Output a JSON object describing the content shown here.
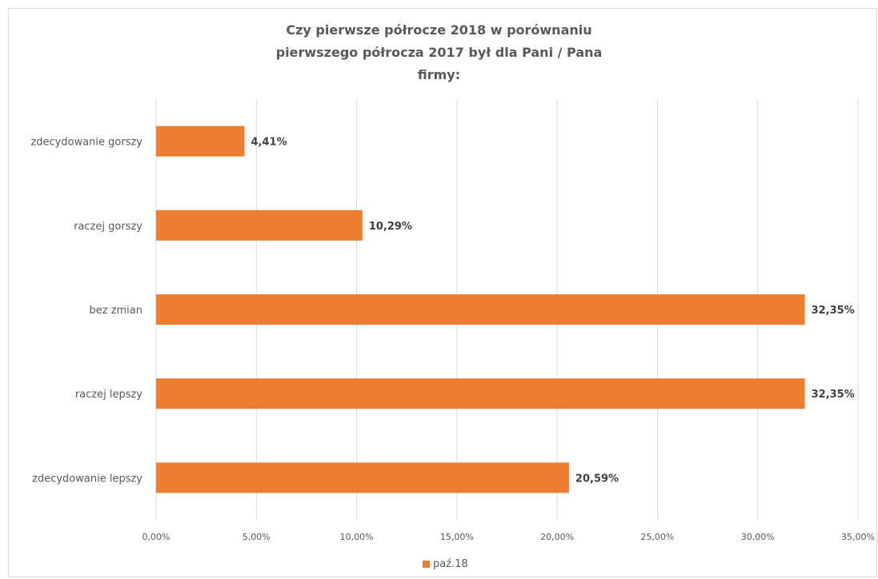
{
  "chart_data": {
    "type": "bar",
    "orientation": "horizontal",
    "title_lines": [
      "Czy pierwsze półrocze 2018 w porównaniu",
      "pierwszego półrocza 2017 był dla Pani / Pana",
      "firmy:"
    ],
    "categories": [
      "zdecydowanie gorszy",
      "raczej  gorszy",
      "bez zmian",
      "raczej lepszy",
      "zdecydowanie  lepszy"
    ],
    "series": [
      {
        "name": "paź.18",
        "values": [
          4.41,
          10.29,
          32.35,
          32.35,
          20.59
        ],
        "color": "#ed7d31"
      }
    ],
    "data_labels": [
      "4,41%",
      "10,29%",
      "32,35%",
      "32,35%",
      "20,59%"
    ],
    "x_ticks": [
      0,
      5,
      10,
      15,
      20,
      25,
      30,
      35
    ],
    "x_tick_labels": [
      "0,00%",
      "5,00%",
      "10,00%",
      "15,00%",
      "20,00%",
      "25,00%",
      "30,00%",
      "35,00%"
    ],
    "xlim": [
      0,
      35
    ],
    "grid": true,
    "legend_position": "bottom",
    "colors": {
      "bar": "#ed7d31",
      "grid": "#d9d9d9",
      "text": "#595959",
      "label": "#404040"
    }
  }
}
